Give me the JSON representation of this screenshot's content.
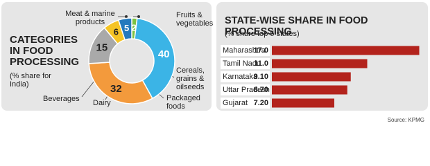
{
  "chart_data": [
    {
      "type": "donut",
      "title": "CATEGORIES IN FOOD PROCESSING",
      "subtitle": "(% share for India)",
      "categories": [
        "Fruits & vegetables",
        "Cereals, grains & oilseeds",
        "Packaged foods",
        "Dairy",
        "Beverages",
        "Meat & marine products"
      ],
      "values": [
        2,
        40,
        32,
        15,
        6,
        5
      ],
      "colors": [
        "#7dc242",
        "#3bb4e6",
        "#f39a3c",
        "#a9a9a9",
        "#f5c425",
        "#2479bd"
      ]
    },
    {
      "type": "bar",
      "title": "STATE-WISE SHARE IN FOOD PROCESSING",
      "subtitle": "(% share top 5 states)",
      "categories": [
        "Maharashtra",
        "Tamil Nadu",
        "Karnataka",
        "Uttar Pradesh",
        "Gujarat"
      ],
      "values": [
        17,
        11,
        9.1,
        8.7,
        7.2
      ],
      "value_labels": [
        "17.0",
        "11.0",
        "9.10",
        "8.70",
        "7.20"
      ],
      "color": "#b3231c"
    }
  ],
  "source": "Source: KPMG"
}
